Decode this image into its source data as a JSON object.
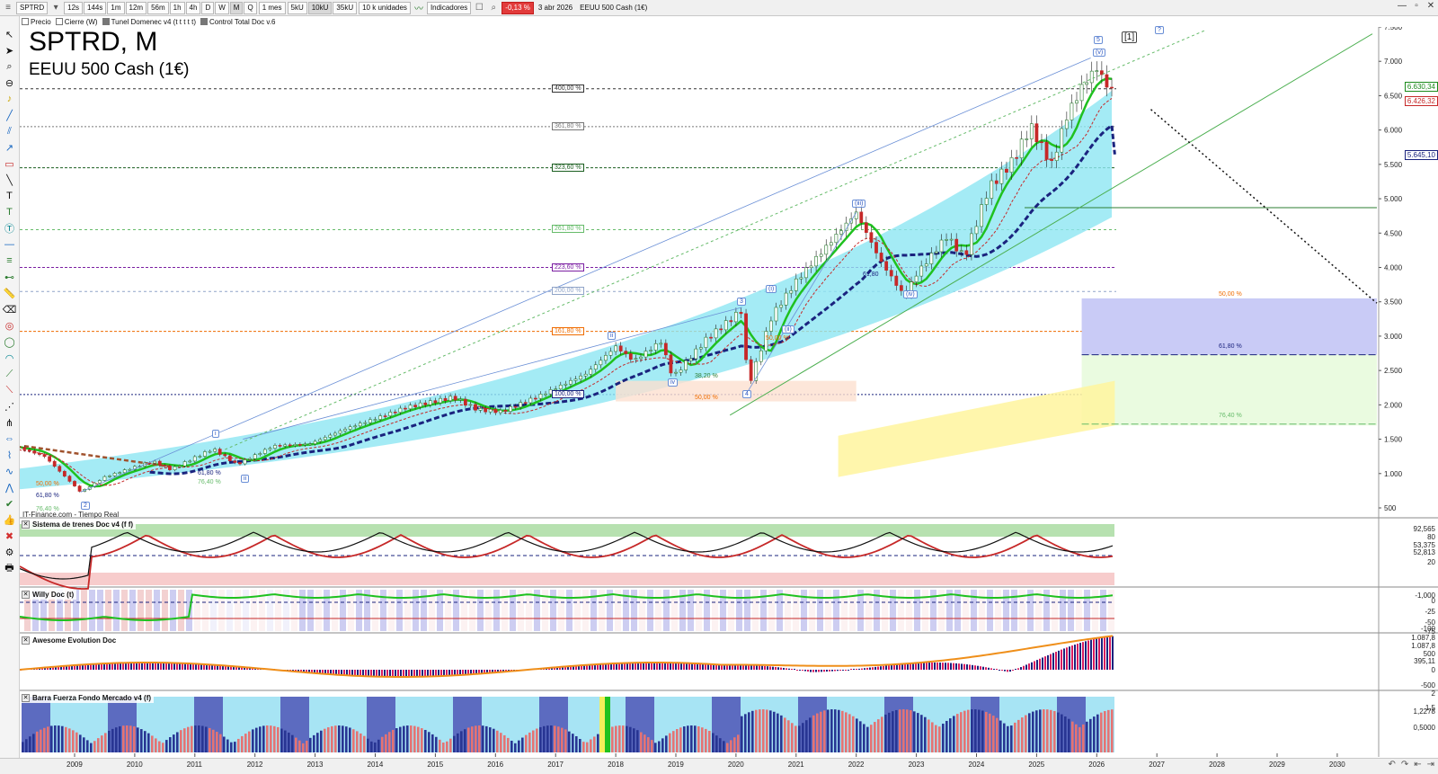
{
  "toolbar": {
    "symbol": "SPTRD",
    "timeframes": [
      "12s",
      "144s",
      "1m",
      "12m",
      "56m",
      "1h",
      "4h",
      "D",
      "W",
      "M",
      "Q"
    ],
    "active_timeframe": "M",
    "period": "1 mes",
    "units": [
      "5kU",
      "10kU",
      "35kU"
    ],
    "active_unit": "10kU",
    "quantity": "10 k unidades",
    "indicators_label": "Indicadores",
    "change": "-0,13 %",
    "date": "3 abr 2026",
    "instrument": "EEUU 500 Cash (1€)"
  },
  "subbar": {
    "items": [
      "Precio",
      "Cierre (W)",
      "Tunel Domenec v4 (t t t t t)",
      "Control Total Doc v.6"
    ]
  },
  "chart": {
    "title": "SPTRD, M",
    "subtitle": "EEUU 500 Cash (1€)",
    "source": "IT-Finance.com - Tiempo Real",
    "y_labels": [
      "7.500",
      "7.000",
      "6.500",
      "6.000",
      "5.500",
      "5.000",
      "4.500",
      "4.000",
      "3.500",
      "3.000",
      "2.500",
      "2.000",
      "1.500",
      "1.000",
      "500"
    ],
    "price_tags": [
      {
        "label": "6.630,34",
        "color": "#1a8a1a"
      },
      {
        "label": "6.426,32",
        "color": "#c62828"
      },
      {
        "label": "5.645,10",
        "color": "#1a237e"
      }
    ],
    "fib_levels": [
      "400,00 %",
      "361,80 %",
      "323,60 %",
      "261,80 %",
      "223,60 %",
      "200,00 %",
      "161,80 %",
      "100,00 %"
    ],
    "fib_right": [
      "50,00 %",
      "61,80 %",
      "76,40 %"
    ],
    "fib_small": [
      "38,20 %",
      "50,00 %",
      "61,80 %",
      "76,40 %",
      "50,00 %",
      "61,80 %",
      "76,40 %",
      "61,80",
      "50,00 %"
    ],
    "waves": [
      "5",
      "[1]",
      "?",
      "(v)",
      "(iii)",
      "(i)",
      "(ii)",
      "(iv)",
      "3",
      "ii",
      "iv",
      "i",
      "ii",
      "2",
      "4"
    ]
  },
  "panels": [
    {
      "title": "Sistema de trenes Doc v4 (f f)",
      "labels": [
        "92,565",
        "80",
        "53,375",
        "52,813",
        "20"
      ]
    },
    {
      "title": "Willy Doc (t)",
      "labels": [
        "-1,000",
        "0",
        "-25",
        "-50",
        "-75",
        "-100"
      ]
    },
    {
      "title": "Awesome Evolution Doc",
      "labels": [
        "1.087,8",
        "1.087,8",
        "500",
        "395,11",
        "0",
        "-500"
      ]
    },
    {
      "title": "Barra Fuerza Fondo Mercado v4 (f)",
      "labels": [
        "2",
        "1,5",
        "1,2278",
        "0,5000"
      ]
    }
  ],
  "x_labels": [
    "2009",
    "2010",
    "2011",
    "2012",
    "2013",
    "2014",
    "2015",
    "2016",
    "2017",
    "2018",
    "2019",
    "2020",
    "2021",
    "2022",
    "2023",
    "2024",
    "2025",
    "2026",
    "2027",
    "2028",
    "2029",
    "2030"
  ],
  "colors": {
    "up": "#2e7d32",
    "down": "#c62828",
    "ma_fast": "#21c021",
    "ma_slow": "#1a237e",
    "band": "#7fe0f0",
    "target": "#fff59d",
    "zone": "#c5c8f5"
  }
}
